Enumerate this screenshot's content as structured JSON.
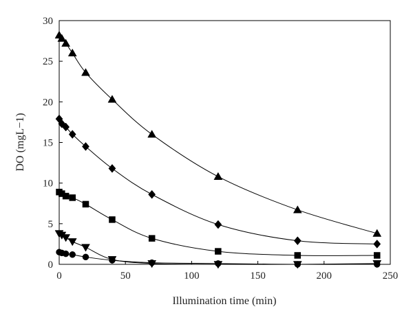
{
  "chart_data": {
    "type": "line",
    "title": "",
    "xlabel": "Illumination time (min)",
    "ylabel": "DO (mgL−1)",
    "xlim": [
      0,
      250
    ],
    "ylim": [
      0,
      30
    ],
    "xticks": [
      "0",
      "50",
      "100",
      "150",
      "200",
      "250"
    ],
    "yticks": [
      "0",
      "5",
      "10",
      "15",
      "20",
      "25",
      "30"
    ],
    "grid": false,
    "legend": "none",
    "series": [
      {
        "marker": "triangle",
        "color": "#000000",
        "x": [
          0,
          2,
          5,
          10,
          20,
          40,
          70,
          120,
          180,
          240
        ],
        "y": [
          28.2,
          27.8,
          27.2,
          26.0,
          23.6,
          20.3,
          16.0,
          10.8,
          6.7,
          3.8
        ]
      },
      {
        "marker": "diamond",
        "color": "#000000",
        "x": [
          0,
          2,
          5,
          10,
          20,
          40,
          70,
          120,
          180,
          240
        ],
        "y": [
          17.9,
          17.3,
          16.9,
          16.0,
          14.5,
          11.8,
          8.6,
          4.9,
          2.9,
          2.5
        ]
      },
      {
        "marker": "square",
        "color": "#000000",
        "x": [
          0,
          2,
          5,
          10,
          20,
          40,
          70,
          120,
          180,
          240
        ],
        "y": [
          8.9,
          8.7,
          8.4,
          8.2,
          7.4,
          5.5,
          3.2,
          1.6,
          1.1,
          1.1
        ]
      },
      {
        "marker": "triangle-down",
        "color": "#000000",
        "x": [
          0,
          2,
          5,
          10,
          20,
          40,
          70,
          120,
          180,
          240
        ],
        "y": [
          3.8,
          3.6,
          3.3,
          2.8,
          2.1,
          0.6,
          0.1,
          0.0,
          0.0,
          0.1
        ]
      },
      {
        "marker": "circle",
        "color": "#000000",
        "x": [
          0,
          2,
          5,
          10,
          20,
          40,
          70,
          120,
          180,
          240
        ],
        "y": [
          1.5,
          1.4,
          1.3,
          1.2,
          0.9,
          0.5,
          0.2,
          0.1,
          0.0,
          0.0
        ]
      }
    ]
  }
}
